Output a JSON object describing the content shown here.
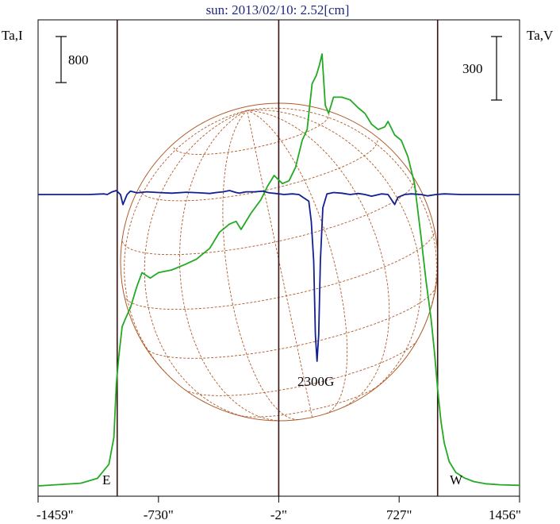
{
  "chart_data": {
    "type": "line",
    "title": "sun: 2013/02/10: 2.52[cm]",
    "left_axis_label": "Ta,I",
    "right_axis_label": "Ta,V",
    "x_ticks": [
      "-1459\"",
      "-730\"",
      "-2\"",
      "727\"",
      "1456\""
    ],
    "x_tick_values": [
      -1459,
      -730,
      -2,
      727,
      1456
    ],
    "xlim": [
      -1459,
      1456
    ],
    "scale_bar_left": "800",
    "scale_bar_right": "300",
    "limb_labels": {
      "east": "E",
      "west": "W"
    },
    "annotation": "2300G",
    "vertical_lines": [
      -980,
      -2,
      960
    ],
    "colors": {
      "intensity": "#22aa22",
      "polarization": "#102090",
      "disk": "#b05a2a",
      "vertical": "#3a1010",
      "axis": "#000000"
    },
    "series": [
      {
        "key": "intensity",
        "x": [
          -1459,
          -1200,
          -1100,
          -1030,
          -1000,
          -985,
          -970,
          -950,
          -930,
          -900,
          -860,
          -830,
          -780,
          -730,
          -650,
          -570,
          -500,
          -420,
          -360,
          -300,
          -260,
          -230,
          -170,
          -110,
          -70,
          -30,
          20,
          60,
          100,
          140,
          170,
          200,
          225,
          245,
          260,
          280,
          300,
          330,
          380,
          430,
          480,
          520,
          560,
          600,
          640,
          660,
          700,
          740,
          780,
          820,
          860,
          890,
          920,
          940,
          960,
          980,
          1000,
          1030,
          1070,
          1120,
          1180,
          1250,
          1340,
          1456
        ],
        "y": [
          0,
          5,
          14,
          40,
          90,
          190,
          240,
          295,
          310,
          330,
          370,
          395,
          385,
          395,
          400,
          410,
          420,
          440,
          470,
          485,
          490,
          475,
          505,
          530,
          555,
          575,
          560,
          565,
          590,
          640,
          660,
          745,
          760,
          780,
          800,
          705,
          690,
          720,
          720,
          715,
          700,
          690,
          670,
          660,
          665,
          675,
          650,
          640,
          610,
          560,
          460,
          380,
          310,
          250,
          180,
          120,
          80,
          45,
          25,
          15,
          8,
          4,
          2,
          1
        ]
      },
      {
        "key": "polarization",
        "x": [
          -1459,
          -1150,
          -1060,
          -1040,
          -1010,
          -985,
          -960,
          -945,
          -920,
          -900,
          -860,
          -800,
          -730,
          -650,
          -560,
          -480,
          -420,
          -380,
          -340,
          -300,
          -260,
          -240,
          -200,
          -150,
          -100,
          -60,
          -20,
          30,
          80,
          120,
          150,
          180,
          195,
          210,
          220,
          230,
          240,
          250,
          265,
          290,
          330,
          380,
          430,
          480,
          520,
          560,
          620,
          660,
          680,
          700,
          720,
          760,
          800,
          860,
          900,
          950,
          1000,
          1100,
          1456
        ],
        "y": [
          0,
          0,
          2,
          0,
          8,
          12,
          0,
          -30,
          0,
          10,
          5,
          8,
          6,
          4,
          7,
          5,
          3,
          6,
          8,
          12,
          6,
          4,
          8,
          8,
          10,
          5,
          3,
          0,
          2,
          0,
          -10,
          -20,
          -80,
          -200,
          -420,
          -500,
          -420,
          -200,
          -40,
          2,
          6,
          4,
          0,
          3,
          0,
          -5,
          2,
          0,
          -15,
          -30,
          -8,
          0,
          2,
          0,
          -4,
          0,
          2,
          0,
          0
        ]
      }
    ]
  }
}
